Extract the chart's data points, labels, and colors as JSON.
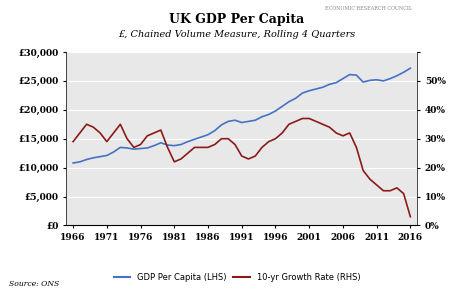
{
  "title": "UK GDP Per Capita",
  "subtitle": "£, Chained Volume Measure, Rolling 4 Quarters",
  "source": "Source: ONS",
  "watermark_line1": "ECONOMIC RESEARCH COUNCIL",
  "gdp_color": "#4472C4",
  "growth_color": "#8B1A1A",
  "background_color": "#FFFFFF",
  "plot_bg_color": "#E8E8E8",
  "years": [
    1966,
    1967,
    1968,
    1969,
    1970,
    1971,
    1972,
    1973,
    1974,
    1975,
    1976,
    1977,
    1978,
    1979,
    1980,
    1981,
    1982,
    1983,
    1984,
    1985,
    1986,
    1987,
    1988,
    1989,
    1990,
    1991,
    1992,
    1993,
    1994,
    1995,
    1996,
    1997,
    1998,
    1999,
    2000,
    2001,
    2002,
    2003,
    2004,
    2005,
    2006,
    2007,
    2008,
    2009,
    2010,
    2011,
    2012,
    2013,
    2014,
    2015,
    2016
  ],
  "gdp_values": [
    10800,
    11000,
    11400,
    11700,
    11900,
    12100,
    12700,
    13500,
    13400,
    13200,
    13300,
    13400,
    13800,
    14300,
    13900,
    13800,
    14000,
    14500,
    14900,
    15300,
    15700,
    16400,
    17400,
    18000,
    18200,
    17800,
    18000,
    18200,
    18800,
    19200,
    19800,
    20600,
    21400,
    22000,
    22900,
    23300,
    23600,
    23900,
    24400,
    24700,
    25400,
    26100,
    26000,
    24800,
    25100,
    25200,
    25000,
    25400,
    25900,
    26500,
    27200
  ],
  "growth_values": [
    29,
    32,
    35,
    34,
    32,
    29,
    32,
    35,
    30,
    27,
    28,
    31,
    32,
    33,
    27,
    22,
    23,
    25,
    27,
    27,
    27,
    28,
    30,
    30,
    28,
    24,
    23,
    24,
    27,
    29,
    30,
    32,
    35,
    36,
    37,
    37,
    36,
    35,
    34,
    32,
    31,
    32,
    27,
    19,
    16,
    14,
    12,
    12,
    13,
    11,
    3
  ],
  "ylim_left": [
    0,
    30000
  ],
  "ylim_right": [
    0,
    60
  ],
  "yticks_left": [
    0,
    5000,
    10000,
    15000,
    20000,
    25000,
    30000
  ],
  "ytick_labels_left": [
    "£0",
    "£5,000",
    "£10,000",
    "£15,000",
    "£20,000",
    "£25,000",
    "£30,000"
  ],
  "yticks_right": [
    0,
    10,
    20,
    30,
    40,
    50,
    60
  ],
  "ytick_labels_right": [
    "0%",
    "10%",
    "20%",
    "30%",
    "40%",
    "50%",
    ""
  ],
  "xticks": [
    1966,
    1971,
    1976,
    1981,
    1986,
    1991,
    1996,
    2001,
    2006,
    2011,
    2016
  ],
  "xlim": [
    1965,
    2017
  ],
  "legend_gdp": "GDP Per Capita (LHS)",
  "legend_growth": "10-yr Growth Rate (RHS)"
}
